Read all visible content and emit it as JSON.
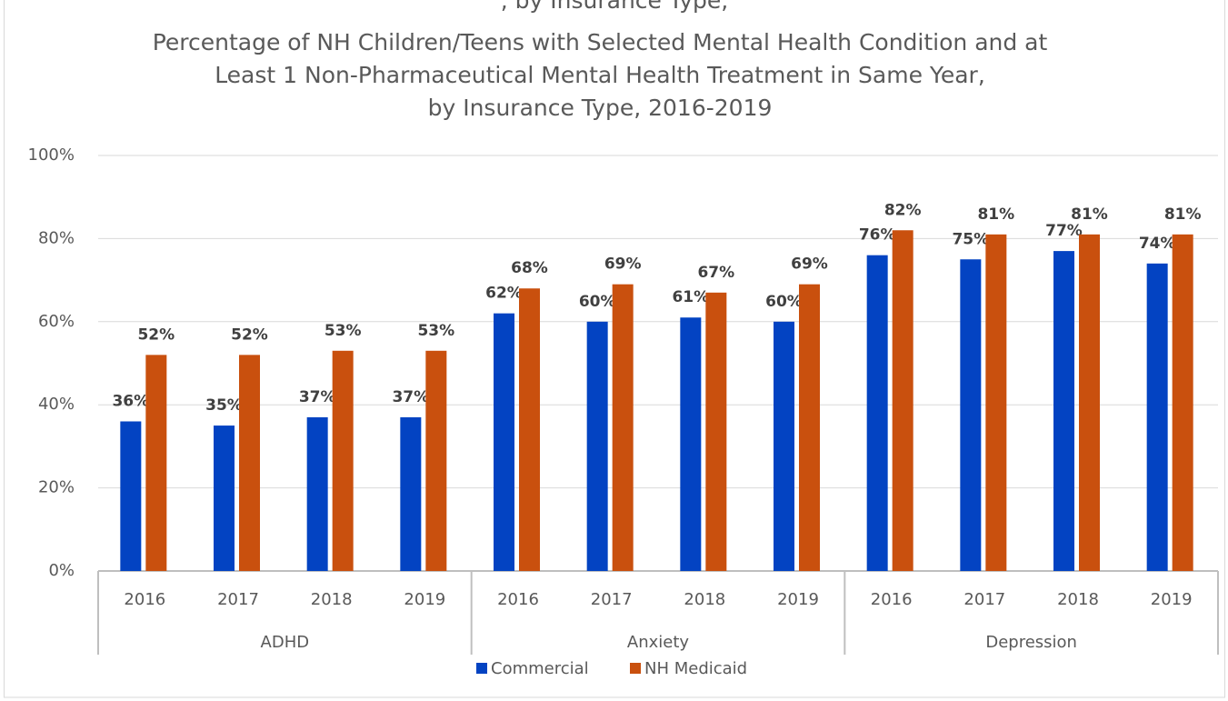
{
  "cropped_text": ", by Insurance Type, ",
  "chart_data": {
    "type": "bar",
    "title_lines": [
      "Percentage of NH Children/Teens with Selected Mental Health Condition and at",
      "Least 1 Non-Pharmaceutical Mental Health Treatment in Same Year,",
      "by Insurance Type, 2016-2019"
    ],
    "categories": [
      "2016",
      "2017",
      "2018",
      "2019",
      "2016",
      "2017",
      "2018",
      "2019",
      "2016",
      "2017",
      "2018",
      "2019"
    ],
    "groups": [
      "ADHD",
      "Anxiety",
      "Depression"
    ],
    "series": [
      {
        "name": "Commercial",
        "color": "#0343c2",
        "values": [
          36,
          35,
          37,
          37,
          62,
          60,
          61,
          60,
          76,
          75,
          77,
          74
        ],
        "value_labels": [
          "36%",
          "35%",
          "37%",
          "37%",
          "62%",
          "60%",
          "61%",
          "60%",
          "76%",
          "75%",
          "77%",
          "74%"
        ]
      },
      {
        "name": "NH Medicaid",
        "color": "#c9500e",
        "values": [
          52,
          52,
          53,
          53,
          68,
          69,
          67,
          69,
          82,
          81,
          81,
          81
        ],
        "value_labels": [
          "52%",
          "52%",
          "53%",
          "53%",
          "68%",
          "69%",
          "67%",
          "69%",
          "82%",
          "81%",
          "81%",
          "81%"
        ]
      }
    ],
    "ylim": [
      0,
      100
    ],
    "yticks": [
      {
        "value": 0,
        "label": "0%"
      },
      {
        "value": 20,
        "label": "20%"
      },
      {
        "value": 40,
        "label": "40%"
      },
      {
        "value": 60,
        "label": "60%"
      },
      {
        "value": 80,
        "label": "80%"
      },
      {
        "value": 100,
        "label": "100%"
      }
    ],
    "grid": true,
    "legend": "bottom"
  }
}
